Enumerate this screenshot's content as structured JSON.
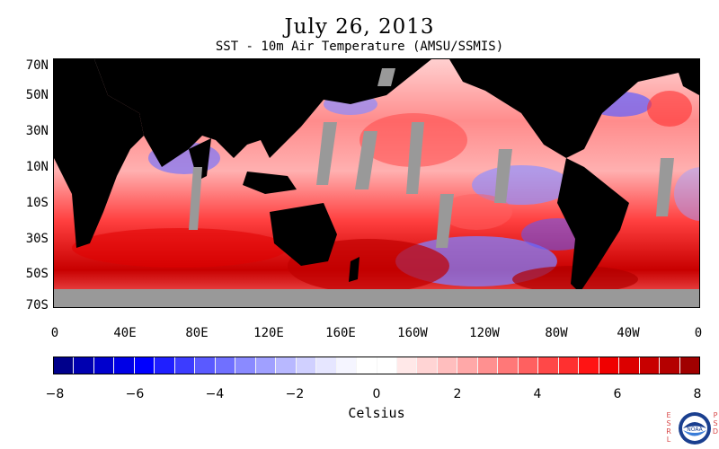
{
  "title": "July 26, 2013",
  "subtitle": "SST - 10m Air Temperature (AMSU/SSMIS)",
  "map": {
    "lat_labels": [
      "70N",
      "50N",
      "30N",
      "10N",
      "10S",
      "30S",
      "50S",
      "70S"
    ],
    "lon_labels": [
      "0",
      "40E",
      "80E",
      "120E",
      "160E",
      "160W",
      "120W",
      "80W",
      "40W",
      "0"
    ],
    "lat_range": [
      -70,
      70
    ],
    "lon_range_degrees_east": [
      0,
      360
    ]
  },
  "colorbar": {
    "label": "Celsius",
    "range": [
      -8,
      8
    ],
    "step": 0.5,
    "tick_labels": [
      "−8",
      "−6",
      "−4",
      "−2",
      "0",
      "2",
      "4",
      "6",
      "8"
    ],
    "colors": [
      "#00008b",
      "#0000b0",
      "#0000cd",
      "#0000e6",
      "#0000ff",
      "#1f1fff",
      "#3c3cff",
      "#5a5aff",
      "#7070ff",
      "#8a8aff",
      "#a0a0ff",
      "#b8b8ff",
      "#d0d0ff",
      "#e6e6ff",
      "#f5f5ff",
      "#ffffff",
      "#ffffff",
      "#ffe8e8",
      "#ffd4d4",
      "#ffbebe",
      "#ffa8a8",
      "#ff9090",
      "#ff7878",
      "#ff6060",
      "#ff4848",
      "#ff3030",
      "#ff1414",
      "#f00000",
      "#dc0000",
      "#c80000",
      "#b40000",
      "#a00000"
    ]
  },
  "colors": {
    "land": "#000000",
    "missing": "#999999",
    "background": "#ffffff"
  },
  "credits": {
    "left": [
      "E",
      "S",
      "R",
      "L"
    ],
    "right": [
      "P",
      "S",
      "D"
    ],
    "logo_text": "NOAA"
  }
}
